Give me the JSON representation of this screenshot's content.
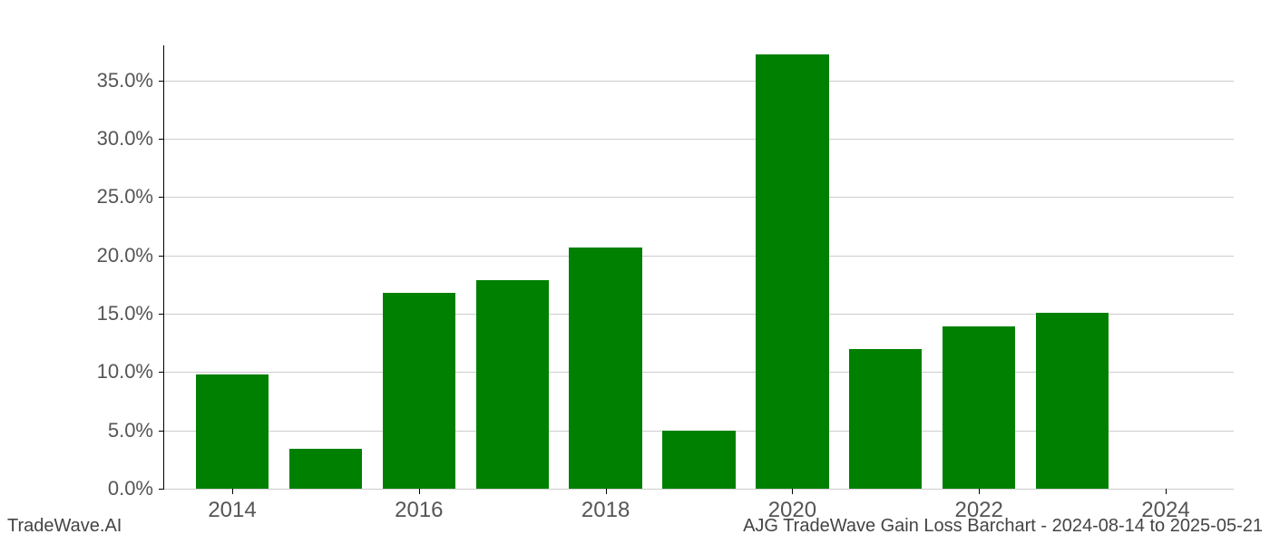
{
  "chart": {
    "type": "bar",
    "categories": [
      2014,
      2015,
      2016,
      2017,
      2018,
      2019,
      2020,
      2021,
      2022,
      2023,
      2024
    ],
    "values": [
      9.8,
      3.4,
      16.8,
      17.9,
      20.7,
      5.0,
      37.2,
      12.0,
      13.9,
      15.1,
      0.0
    ],
    "bar_color": "#008000",
    "bar_width_ratio": 0.78,
    "ylim": [
      0,
      38
    ],
    "yticks": [
      0.0,
      5.0,
      10.0,
      15.0,
      20.0,
      25.0,
      30.0,
      35.0
    ],
    "ytick_labels": [
      "0.0%",
      "5.0%",
      "10.0%",
      "15.0%",
      "20.0%",
      "25.0%",
      "30.0%",
      "35.0%"
    ],
    "xticks_shown": [
      2014,
      2016,
      2018,
      2020,
      2022,
      2024
    ],
    "xtick_labels": [
      "2014",
      "2016",
      "2018",
      "2020",
      "2022",
      "2024"
    ],
    "background_color": "#ffffff",
    "grid_color": "#cccccc",
    "axis_color": "#000000",
    "tick_label_color": "#555555",
    "tick_fontsize": 22
  },
  "footer": {
    "left": "TradeWave.AI",
    "right": "AJG TradeWave Gain Loss Barchart - 2024-08-14 to 2025-05-21",
    "fontsize": 20,
    "color": "#444444"
  }
}
